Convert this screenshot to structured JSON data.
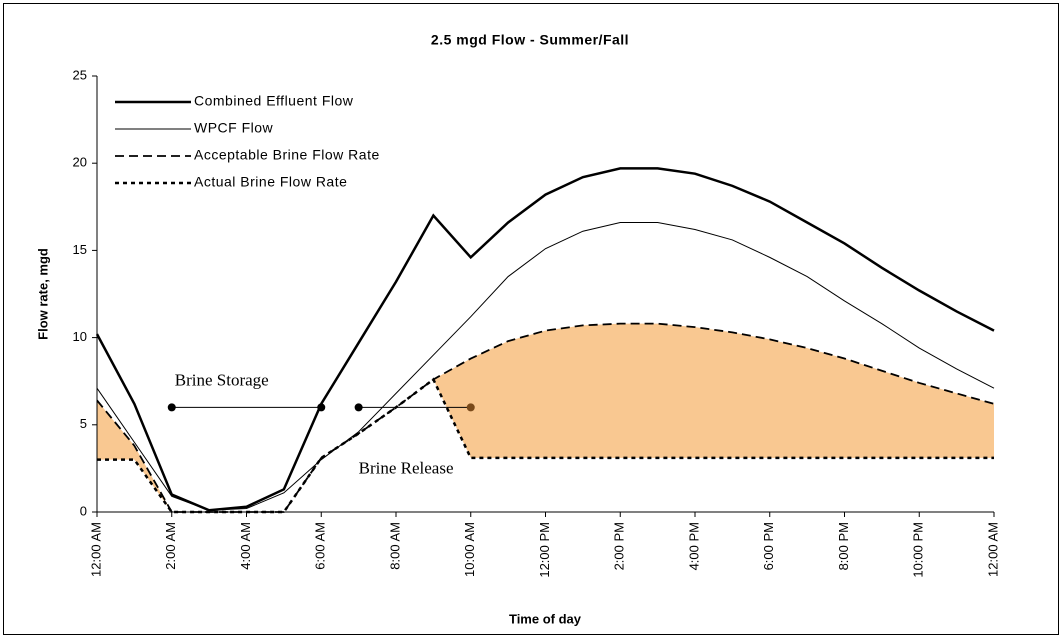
{
  "chart_data": {
    "type": "line",
    "title": "2.5 mgd Flow  - Summer/Fall",
    "xlabel": "Time of day",
    "ylabel": "Flow rate, mgd",
    "x": [
      0,
      1,
      2,
      3,
      4,
      5,
      6,
      7,
      8,
      9,
      10,
      11,
      12,
      13,
      14,
      15,
      16,
      17,
      18,
      19,
      20,
      21,
      22,
      23,
      24
    ],
    "xlim": [
      0,
      24
    ],
    "xticks": [
      {
        "value": 0,
        "label": "12:00 AM"
      },
      {
        "value": 2,
        "label": "2:00 AM"
      },
      {
        "value": 4,
        "label": "4:00 AM"
      },
      {
        "value": 6,
        "label": "6:00 AM"
      },
      {
        "value": 8,
        "label": "8:00 AM"
      },
      {
        "value": 10,
        "label": "10:00 AM"
      },
      {
        "value": 12,
        "label": "12:00 PM"
      },
      {
        "value": 14,
        "label": "2:00 PM"
      },
      {
        "value": 16,
        "label": "4:00 PM"
      },
      {
        "value": 18,
        "label": "6:00 PM"
      },
      {
        "value": 20,
        "label": "8:00 PM"
      },
      {
        "value": 22,
        "label": "10:00 PM"
      },
      {
        "value": 24,
        "label": "12:00 AM"
      }
    ],
    "ylim": [
      0,
      25
    ],
    "yticks": [
      0,
      5,
      10,
      15,
      20,
      25
    ],
    "grid": false,
    "legend": "upper left",
    "fill_color": "#f9c891",
    "series": [
      {
        "name": "Combined Effluent Flow",
        "color": "#000000",
        "style": "solid",
        "width": 2.5,
        "values": [
          10.2,
          6.2,
          1.0,
          0.1,
          0.3,
          1.3,
          6.2,
          9.7,
          13.2,
          17.0,
          14.6,
          16.6,
          18.2,
          19.2,
          19.7,
          19.7,
          19.4,
          18.7,
          17.8,
          16.6,
          15.4,
          14.0,
          12.7,
          11.5,
          10.4
        ]
      },
      {
        "name": "WPCF Flow",
        "color": "#000000",
        "style": "solid",
        "width": 1,
        "values": [
          7.1,
          4.0,
          0.9,
          0.1,
          0.2,
          1.1,
          3.0,
          4.6,
          6.8,
          9.0,
          11.2,
          13.5,
          15.1,
          16.1,
          16.6,
          16.6,
          16.2,
          15.6,
          14.6,
          13.5,
          12.1,
          10.8,
          9.4,
          8.2,
          7.1
        ]
      },
      {
        "name": "Acceptable Brine Flow Rate",
        "color": "#000000",
        "style": "dashed",
        "width": 1.8,
        "values": [
          6.4,
          3.8,
          0,
          0,
          0,
          0,
          3.1,
          4.5,
          6.0,
          7.6,
          8.8,
          9.8,
          10.4,
          10.7,
          10.8,
          10.8,
          10.6,
          10.3,
          9.9,
          9.4,
          8.8,
          8.1,
          7.4,
          6.8,
          6.2
        ]
      },
      {
        "name": "Actual Brine Flow Rate",
        "color": "#000000",
        "style": "dotted",
        "width": 2.5,
        "values": [
          3.0,
          3.0,
          0,
          0,
          0,
          0,
          3.1,
          4.5,
          6.0,
          7.6,
          3.1,
          3.1,
          3.1,
          3.1,
          3.1,
          3.1,
          3.1,
          3.1,
          3.1,
          3.1,
          3.1,
          3.1,
          3.1,
          3.1,
          3.1
        ]
      }
    ],
    "annotations": [
      {
        "text": "Brine Storage",
        "x": [
          2,
          6
        ],
        "y": 6
      },
      {
        "text": "Brine Release",
        "x": [
          7,
          10
        ],
        "y": 6
      }
    ]
  }
}
